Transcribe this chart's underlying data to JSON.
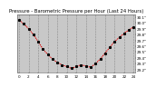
{
  "title": "Pressure - Barometric Pressure per Hour (Last 24 Hours)",
  "x_values": [
    0,
    1,
    2,
    3,
    4,
    5,
    6,
    7,
    8,
    9,
    10,
    11,
    12,
    13,
    14,
    15,
    16,
    17,
    18,
    19,
    20,
    21,
    22,
    23,
    24
  ],
  "y_values": [
    30.05,
    29.98,
    29.9,
    29.8,
    29.68,
    29.55,
    29.46,
    29.38,
    29.32,
    29.28,
    29.25,
    29.22,
    29.25,
    29.28,
    29.26,
    29.24,
    29.3,
    29.38,
    29.48,
    29.58,
    29.68,
    29.75,
    29.82,
    29.88,
    29.93
  ],
  "y_ticks": [
    29.2,
    29.3,
    29.4,
    29.5,
    29.6,
    29.7,
    29.8,
    29.9,
    30.0,
    30.1
  ],
  "y_tick_labels": [
    "29.2\"",
    "29.3\"",
    "29.4\"",
    "29.5\"",
    "29.6\"",
    "29.7\"",
    "29.8\"",
    "29.9\"",
    "30.0\"",
    "30.1\""
  ],
  "x_ticks": [
    0,
    2,
    4,
    6,
    8,
    10,
    12,
    14,
    16,
    18,
    20,
    22,
    24
  ],
  "x_tick_labels": [
    "0",
    "2",
    "4",
    "6",
    "8",
    "10",
    "12",
    "14",
    "16",
    "18",
    "20",
    "22",
    "24"
  ],
  "ylim": [
    29.15,
    30.15
  ],
  "xlim": [
    -0.3,
    24.3
  ],
  "line_color": "#dd0000",
  "marker_color": "#000000",
  "bg_color": "#ffffff",
  "plot_bg_color": "#c8c8c8",
  "grid_color": "#888888",
  "title_color": "#000000",
  "title_fontsize": 3.8,
  "tick_fontsize": 3.0,
  "line_width": 0.7,
  "marker_size": 1.2,
  "grid_linewidth": 0.4
}
